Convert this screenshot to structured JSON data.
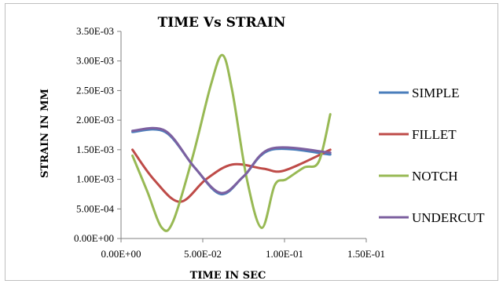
{
  "chart_data": {
    "type": "line",
    "title": "TIME Vs STRAIN",
    "xlabel": "TIME IN SEC",
    "ylabel": "STRAIN IN MM",
    "xlim": [
      0,
      0.15
    ],
    "ylim": [
      0,
      0.0035
    ],
    "x_ticks": [
      {
        "value": 0,
        "label": "0.00E+00"
      },
      {
        "value": 0.05,
        "label": "5.00E-02"
      },
      {
        "value": 0.1,
        "label": "1.00E-01"
      },
      {
        "value": 0.15,
        "label": "1.50E-01"
      }
    ],
    "y_ticks": [
      {
        "value": 0,
        "label": "0.00E+00"
      },
      {
        "value": 0.0005,
        "label": "5.00E-04"
      },
      {
        "value": 0.001,
        "label": "1.00E-03"
      },
      {
        "value": 0.0015,
        "label": "1.50E-03"
      },
      {
        "value": 0.002,
        "label": "2.00E-03"
      },
      {
        "value": 0.0025,
        "label": "2.50E-03"
      },
      {
        "value": 0.003,
        "label": "3.00E-03"
      },
      {
        "value": 0.0035,
        "label": "3.50E-03"
      }
    ],
    "grid": false,
    "legend_position": "right",
    "series": [
      {
        "name": "SIMPLE",
        "color": "#4a7ebb",
        "points": [
          [
            0.007,
            0.0018
          ],
          [
            0.027,
            0.0018
          ],
          [
            0.045,
            0.0012
          ],
          [
            0.061,
            0.00075
          ],
          [
            0.075,
            0.00105
          ],
          [
            0.092,
            0.0015
          ],
          [
            0.128,
            0.00142
          ]
        ]
      },
      {
        "name": "FILLET",
        "color": "#be4b48",
        "points": [
          [
            0.007,
            0.0015
          ],
          [
            0.02,
            0.001
          ],
          [
            0.036,
            0.00062
          ],
          [
            0.052,
            0.001
          ],
          [
            0.068,
            0.00125
          ],
          [
            0.087,
            0.00118
          ],
          [
            0.1,
            0.00115
          ],
          [
            0.128,
            0.0015
          ]
        ]
      },
      {
        "name": "NOTCH",
        "color": "#98b954",
        "points": [
          [
            0.007,
            0.0014
          ],
          [
            0.016,
            0.0008
          ],
          [
            0.025,
            0.00018
          ],
          [
            0.032,
            0.0003
          ],
          [
            0.044,
            0.0014
          ],
          [
            0.055,
            0.0026
          ],
          [
            0.062,
            0.0031
          ],
          [
            0.068,
            0.0025
          ],
          [
            0.077,
            0.001
          ],
          [
            0.086,
            0.00018
          ],
          [
            0.094,
            0.0009
          ],
          [
            0.101,
            0.001
          ],
          [
            0.112,
            0.0012
          ],
          [
            0.121,
            0.0013
          ],
          [
            0.128,
            0.0021
          ]
        ]
      },
      {
        "name": "UNDERCUT",
        "color": "#7d60a0",
        "points": [
          [
            0.007,
            0.00182
          ],
          [
            0.027,
            0.00182
          ],
          [
            0.045,
            0.0012
          ],
          [
            0.061,
            0.00077
          ],
          [
            0.075,
            0.00105
          ],
          [
            0.092,
            0.00152
          ],
          [
            0.128,
            0.00145
          ]
        ]
      }
    ]
  }
}
